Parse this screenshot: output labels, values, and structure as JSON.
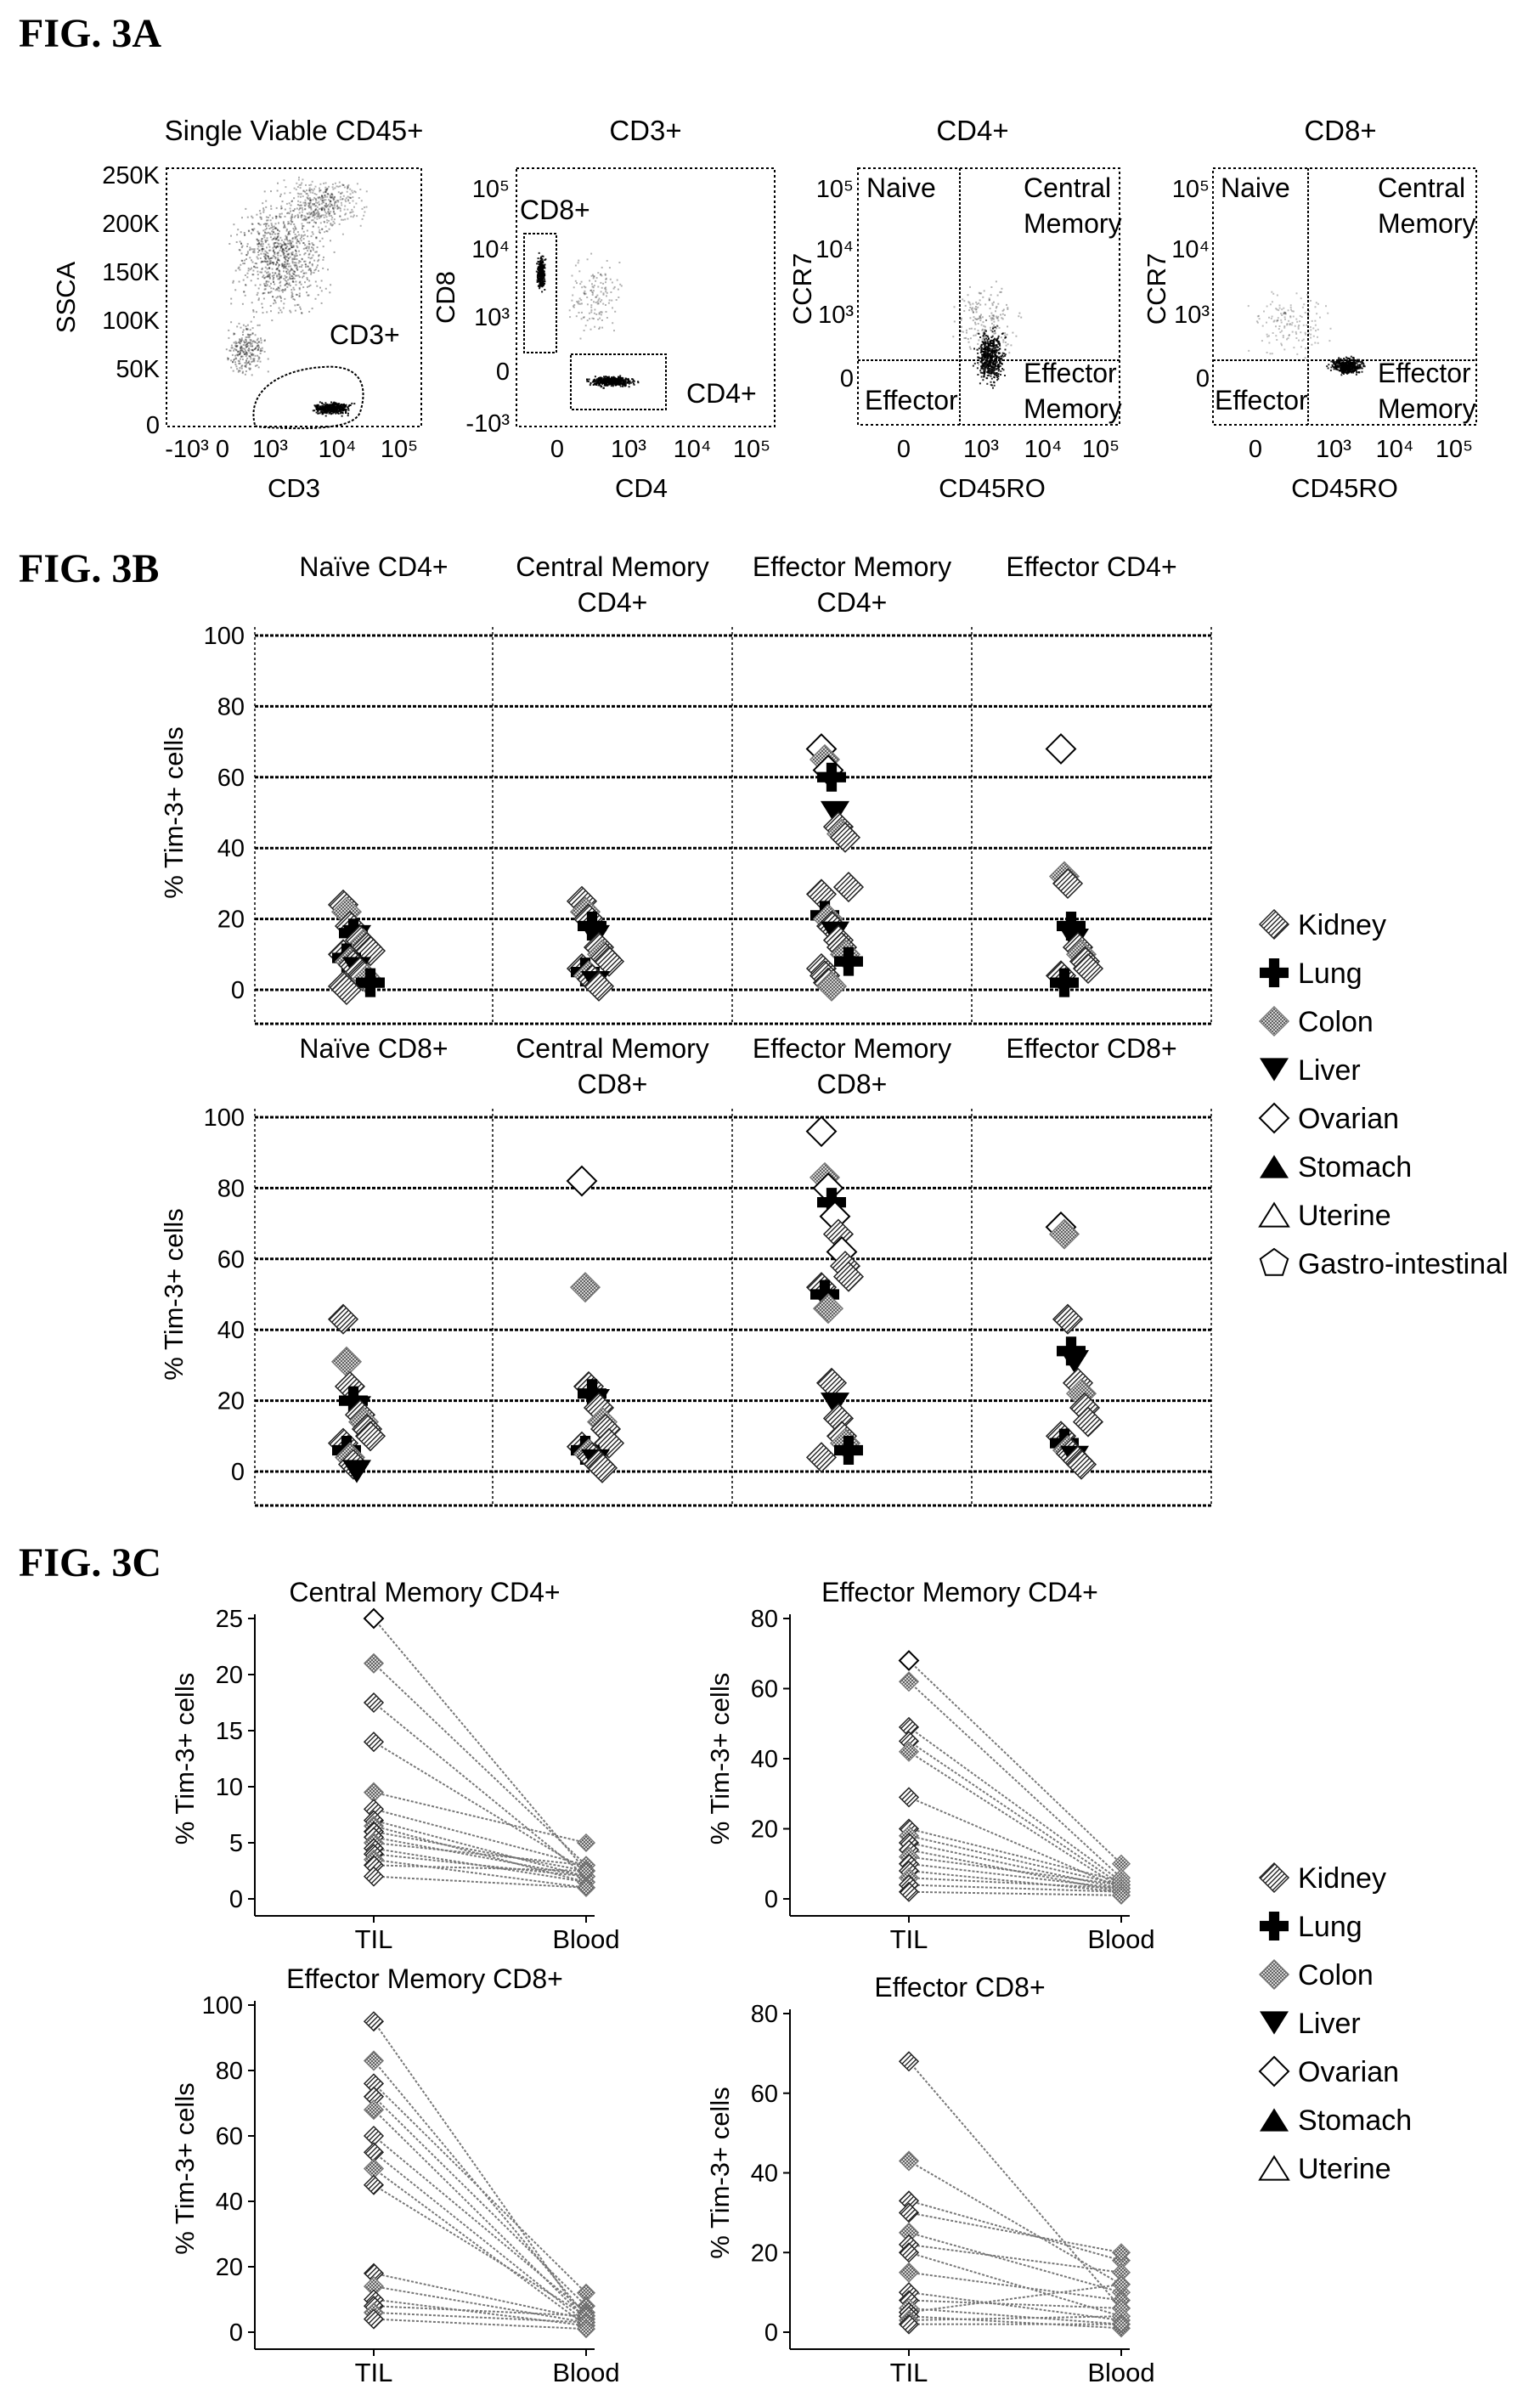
{
  "fig3a": {
    "label": "FIG. 3A",
    "panels": [
      {
        "title": "Single Viable CD45+",
        "xlabel": "CD3",
        "ylabel": "SSCA",
        "yticks": [
          "250K",
          "200K",
          "150K",
          "100K",
          "50K",
          "0"
        ],
        "xticks": [
          "-10³",
          "0",
          "10³",
          "10⁴",
          "10⁵"
        ],
        "gates": [
          "CD3+"
        ]
      },
      {
        "title": "CD3+",
        "xlabel": "CD4",
        "ylabel": "CD8",
        "yticks": [
          "10⁵",
          "10⁴",
          "10³",
          "0",
          "-10³"
        ],
        "xticks": [
          "0",
          "10³",
          "10⁴",
          "10⁵"
        ],
        "gates": [
          "CD8+",
          "CD4+"
        ]
      },
      {
        "title": "CD4+",
        "xlabel": "CD45RO",
        "ylabel": "CCR7",
        "yticks": [
          "10⁵",
          "10⁴",
          "10³",
          "0"
        ],
        "xticks": [
          "0",
          "10³",
          "10⁴",
          "10⁵"
        ],
        "gates": [
          "Naive",
          "Central",
          "Memory",
          "Effector",
          "Effector",
          "Memory"
        ]
      },
      {
        "title": "CD8+",
        "xlabel": "CD45RO",
        "ylabel": "CCR7",
        "yticks": [
          "10⁵",
          "10⁴",
          "10³",
          "0"
        ],
        "xticks": [
          "0",
          "10³",
          "10⁴",
          "10⁵"
        ],
        "gates": [
          "Naive",
          "Central",
          "Memory",
          "Effector",
          "Effector",
          "Memory"
        ]
      }
    ]
  },
  "fig3b": {
    "label": "FIG. 3B",
    "ylabel": "% Tim-3+ cells",
    "yticks": [
      "100",
      "80",
      "60",
      "40",
      "20",
      "0"
    ],
    "top_titles": [
      [
        "Naïve CD4+"
      ],
      [
        "Central Memory",
        "CD4+"
      ],
      [
        "Effector Memory",
        "CD4+"
      ],
      [
        "Effector CD4+"
      ]
    ],
    "bottom_titles": [
      [
        "Naïve CD8+"
      ],
      [
        "Central Memory",
        "CD8+"
      ],
      [
        "Effector Memory",
        "CD8+"
      ],
      [
        "Effector CD8+"
      ]
    ],
    "legend": [
      {
        "label": "Kidney",
        "marker": "diamond-hatched"
      },
      {
        "label": "Lung",
        "marker": "cross"
      },
      {
        "label": "Colon",
        "marker": "x-hatched"
      },
      {
        "label": "Liver",
        "marker": "triangle-down"
      },
      {
        "label": "Ovarian",
        "marker": "diamond-open"
      },
      {
        "label": "Stomach",
        "marker": "triangle-up"
      },
      {
        "label": "Uterine",
        "marker": "triangle-open"
      },
      {
        "label": "Gastro-intestinal",
        "marker": "pentagon-open"
      }
    ]
  },
  "fig3c": {
    "label": "FIG. 3C",
    "ylabel": "% Tim-3+ cells",
    "xticks": [
      "TIL",
      "Blood"
    ],
    "legend": [
      {
        "label": "Kidney",
        "marker": "diamond-hatched"
      },
      {
        "label": "Lung",
        "marker": "cross"
      },
      {
        "label": "Colon",
        "marker": "x-hatched"
      },
      {
        "label": "Liver",
        "marker": "triangle-down"
      },
      {
        "label": "Ovarian",
        "marker": "diamond-open"
      },
      {
        "label": "Stomach",
        "marker": "triangle-up"
      },
      {
        "label": "Uterine",
        "marker": "triangle-open"
      }
    ]
  },
  "chart_data": [
    {
      "type": "scatter",
      "title": "Naïve CD4+",
      "ylabel": "% Tim-3+ cells",
      "ylim": [
        0,
        100
      ],
      "values": [
        24,
        22,
        18,
        16,
        15,
        14,
        13,
        12,
        11,
        10,
        9,
        8,
        7,
        6,
        5,
        4,
        3,
        2,
        1,
        0
      ]
    },
    {
      "type": "scatter",
      "title": "Central Memory CD4+",
      "ylabel": "% Tim-3+ cells",
      "ylim": [
        0,
        100
      ],
      "values": [
        25,
        22,
        20,
        18,
        15,
        12,
        10,
        9,
        8,
        6,
        5,
        4,
        3,
        2,
        1
      ]
    },
    {
      "type": "scatter",
      "title": "Effector Memory CD4+",
      "ylabel": "% Tim-3+ cells",
      "ylim": [
        0,
        100
      ],
      "values": [
        68,
        65,
        62,
        60,
        50,
        46,
        44,
        43,
        29,
        27,
        21,
        20,
        18,
        16,
        14,
        12,
        10,
        8,
        6,
        4,
        2,
        1
      ]
    },
    {
      "type": "scatter",
      "title": "Effector CD4+",
      "ylabel": "% Tim-3+ cells",
      "ylim": [
        0,
        100
      ],
      "values": [
        68,
        32,
        30,
        18,
        14,
        12,
        10,
        8,
        6,
        4,
        2
      ]
    },
    {
      "type": "scatter",
      "title": "Naïve CD8+",
      "ylabel": "% Tim-3+ cells",
      "ylim": [
        0,
        100
      ],
      "values": [
        43,
        31,
        24,
        20,
        18,
        16,
        14,
        12,
        10,
        8,
        6,
        4,
        2,
        0
      ]
    },
    {
      "type": "scatter",
      "title": "Central Memory CD8+",
      "ylabel": "% Tim-3+ cells",
      "ylim": [
        0,
        100
      ],
      "values": [
        82,
        52,
        24,
        22,
        20,
        18,
        14,
        12,
        8,
        7,
        6,
        5,
        4,
        3,
        2,
        1
      ]
    },
    {
      "type": "scatter",
      "title": "Effector Memory CD8+",
      "ylabel": "% Tim-3+ cells",
      "ylim": [
        0,
        100
      ],
      "values": [
        96,
        83,
        80,
        76,
        72,
        67,
        62,
        58,
        55,
        52,
        50,
        46,
        25,
        19,
        15,
        10,
        8,
        6,
        4
      ]
    },
    {
      "type": "scatter",
      "title": "Effector CD8+",
      "ylabel": "% Tim-3+ cells",
      "ylim": [
        0,
        100
      ],
      "values": [
        69,
        67,
        43,
        34,
        31,
        25,
        22,
        18,
        14,
        10,
        8,
        6,
        5,
        4,
        3,
        2
      ]
    },
    {
      "type": "line",
      "title": "Central Memory CD4+",
      "ylabel": "% Tim-3+ cells",
      "categories": [
        "TIL",
        "Blood"
      ],
      "yticks": [
        0,
        5,
        10,
        15,
        20,
        25
      ],
      "ylim": [
        0,
        25
      ],
      "pairs": [
        [
          25,
          2.5
        ],
        [
          21,
          3
        ],
        [
          17.5,
          2
        ],
        [
          14,
          2.5
        ],
        [
          9.5,
          5
        ],
        [
          8,
          3
        ],
        [
          7,
          2
        ],
        [
          6.5,
          1.5
        ],
        [
          6,
          2.5
        ],
        [
          5.5,
          2
        ],
        [
          5,
          3
        ],
        [
          4.5,
          1.5
        ],
        [
          4,
          2
        ],
        [
          3.5,
          1
        ],
        [
          3,
          2.5
        ],
        [
          2,
          1
        ]
      ]
    },
    {
      "type": "line",
      "title": "Effector Memory CD4+",
      "ylabel": "% Tim-3+ cells",
      "categories": [
        "TIL",
        "Blood"
      ],
      "yticks": [
        0,
        20,
        40,
        60,
        80
      ],
      "ylim": [
        0,
        80
      ],
      "pairs": [
        [
          68,
          10
        ],
        [
          62,
          6
        ],
        [
          49,
          5
        ],
        [
          45,
          4
        ],
        [
          42,
          3
        ],
        [
          29,
          3
        ],
        [
          20,
          5
        ],
        [
          18,
          4
        ],
        [
          16,
          3
        ],
        [
          14,
          2
        ],
        [
          12,
          4
        ],
        [
          10,
          3
        ],
        [
          8,
          2
        ],
        [
          6,
          3
        ],
        [
          4,
          2
        ],
        [
          2,
          1
        ]
      ]
    },
    {
      "type": "line",
      "title": "Effector Memory CD8+",
      "ylabel": "% Tim-3+ cells",
      "categories": [
        "TIL",
        "Blood"
      ],
      "yticks": [
        0,
        20,
        40,
        60,
        80,
        100
      ],
      "ylim": [
        0,
        100
      ],
      "pairs": [
        [
          95,
          3
        ],
        [
          83,
          5
        ],
        [
          76,
          12
        ],
        [
          72,
          8
        ],
        [
          68,
          4
        ],
        [
          60,
          6
        ],
        [
          55,
          3
        ],
        [
          50,
          2
        ],
        [
          45,
          5
        ],
        [
          18,
          4
        ],
        [
          14,
          3
        ],
        [
          10,
          2
        ],
        [
          8,
          5
        ],
        [
          6,
          3
        ],
        [
          4,
          1
        ]
      ]
    },
    {
      "type": "line",
      "title": "Effector CD8+",
      "ylabel": "% Tim-3+ cells",
      "categories": [
        "TIL",
        "Blood"
      ],
      "yticks": [
        0,
        20,
        40,
        60,
        80
      ],
      "ylim": [
        0,
        80
      ],
      "pairs": [
        [
          68,
          6
        ],
        [
          43,
          12
        ],
        [
          33,
          18
        ],
        [
          30,
          20
        ],
        [
          25,
          10
        ],
        [
          22,
          15
        ],
        [
          20,
          4
        ],
        [
          15,
          8
        ],
        [
          10,
          3
        ],
        [
          8,
          6
        ],
        [
          6,
          2
        ],
        [
          5,
          12
        ],
        [
          4,
          1
        ],
        [
          3,
          4
        ],
        [
          2,
          2
        ]
      ]
    }
  ]
}
